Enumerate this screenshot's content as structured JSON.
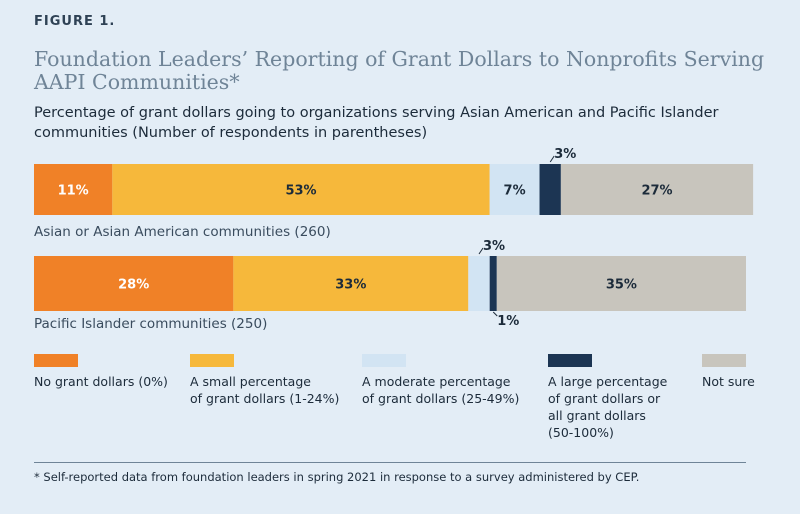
{
  "figure_label": "FIGURE 1.",
  "chart_data": {
    "type": "bar",
    "stacked": true,
    "orientation": "horizontal",
    "title": "Foundation Leaders’ Reporting of Grant Dollars to Nonprofits Serving AAPI Communities*",
    "subtitle": "Percentage of grant dollars going to organizations serving Asian American and Pacific Islander communities (Number of respondents in parentheses)",
    "categories": [
      "Asian or Asian American communities (260)",
      "Pacific Islander communities (250)"
    ],
    "series": [
      {
        "name": "No grant dollars (0%)",
        "color": "#f08127",
        "values": [
          11,
          28
        ]
      },
      {
        "name": "A small percentage of grant dollars (1-24%)",
        "color": "#f6b83b",
        "values": [
          53,
          33
        ]
      },
      {
        "name": "A moderate percentage of grant dollars (25-49%)",
        "color": "#d2e4f3",
        "values": [
          7,
          3
        ]
      },
      {
        "name": "A large percentage of grant dollars or all grant dollars (50-100%)",
        "color": "#1c3553",
        "values": [
          3,
          1
        ]
      },
      {
        "name": "Not sure",
        "color": "#c8c5bd",
        "values": [
          27,
          35
        ]
      }
    ],
    "data_labels": [
      [
        "11%",
        "53%",
        "7%",
        "3%",
        "27%"
      ],
      [
        "28%",
        "33%",
        "3%",
        "1%",
        "35%"
      ]
    ],
    "xlim": [
      0,
      100
    ]
  },
  "legend": [
    {
      "label": "No grant dollars (0%)"
    },
    {
      "label": "A small percentage\nof grant dollars (1-24%)"
    },
    {
      "label": "A moderate percentage\nof grant dollars (25-49%)"
    },
    {
      "label": "A large percentage\nof grant dollars or\nall grant dollars\n(50-100%)"
    },
    {
      "label": "Not sure"
    }
  ],
  "footnote": "* Self-reported data from foundation leaders in spring 2021 in response to a survey administered by CEP."
}
